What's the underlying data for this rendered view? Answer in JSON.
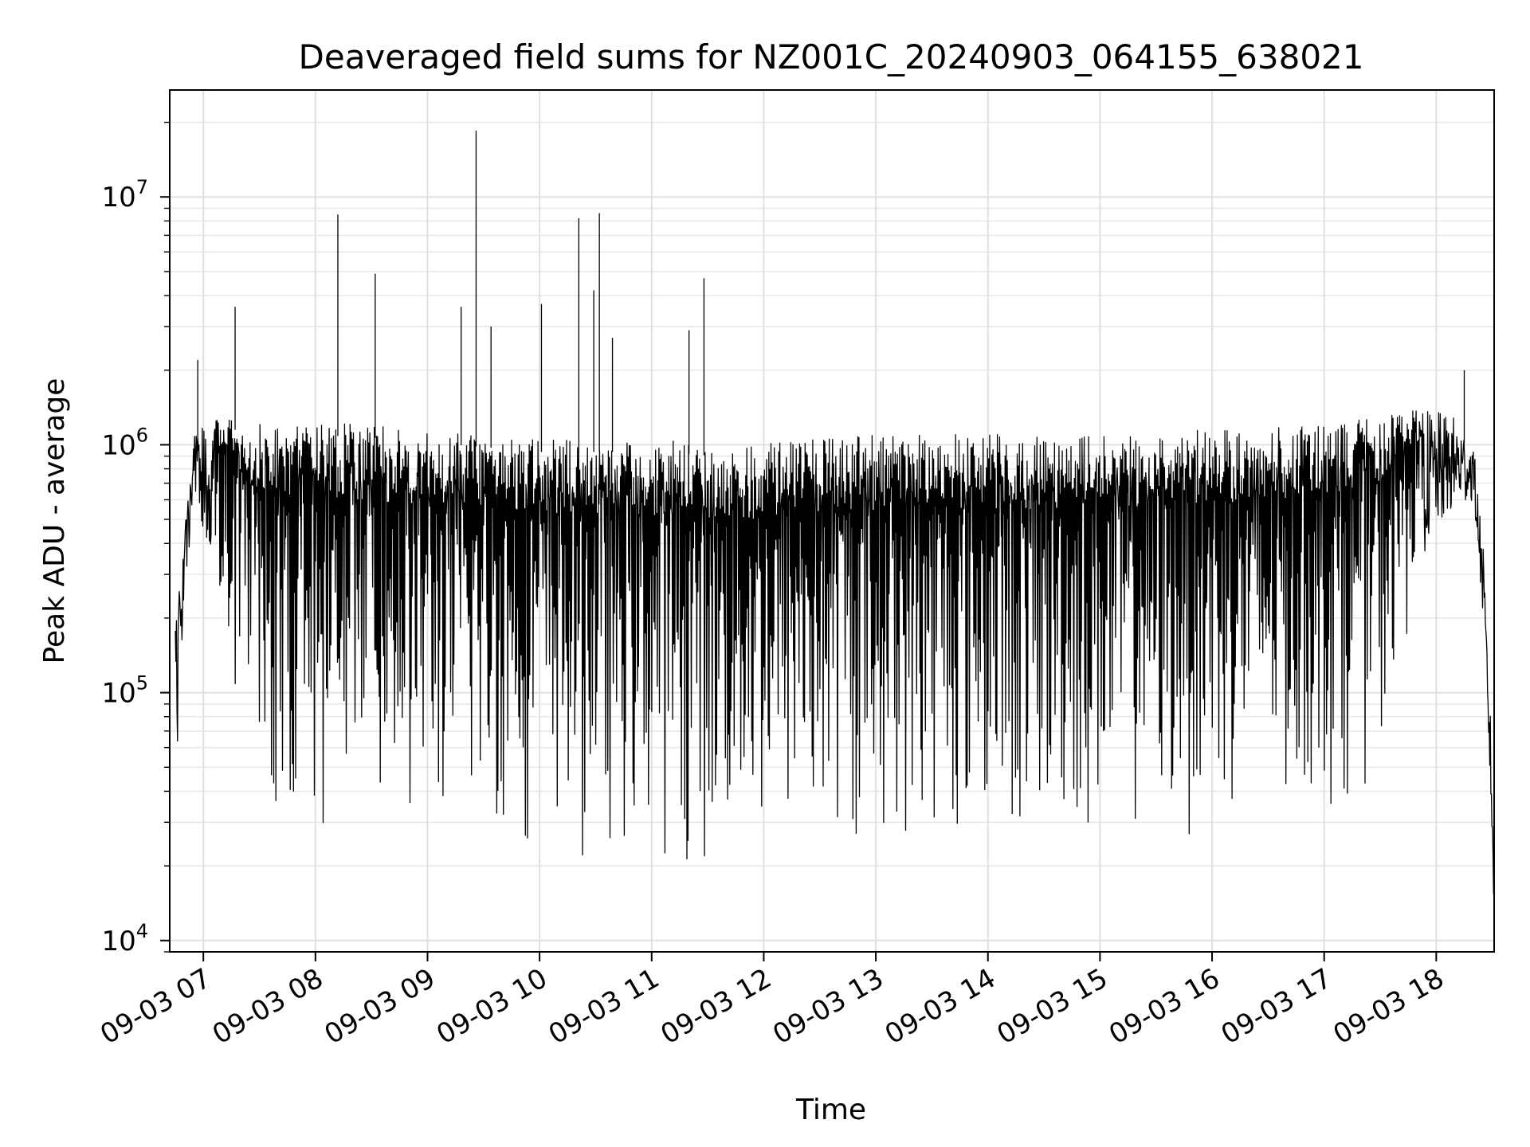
{
  "chart_data": {
    "type": "line",
    "title": "Deaveraged field sums for NZ001C_20240903_064155_638021",
    "xlabel": "Time",
    "ylabel": "Peak ADU - average",
    "yscale": "log",
    "ylim": [
      9000,
      27000000
    ],
    "xlim": [
      "2024-09-03 06:42",
      "2024-09-03 18:31"
    ],
    "grid": true,
    "line_color": "#000000",
    "x_ticks": [
      {
        "time": "2024-09-03 07:00",
        "label": "09-03 07"
      },
      {
        "time": "2024-09-03 08:00",
        "label": "09-03 08"
      },
      {
        "time": "2024-09-03 09:00",
        "label": "09-03 09"
      },
      {
        "time": "2024-09-03 10:00",
        "label": "09-03 10"
      },
      {
        "time": "2024-09-03 11:00",
        "label": "09-03 11"
      },
      {
        "time": "2024-09-03 12:00",
        "label": "09-03 12"
      },
      {
        "time": "2024-09-03 13:00",
        "label": "09-03 13"
      },
      {
        "time": "2024-09-03 14:00",
        "label": "09-03 14"
      },
      {
        "time": "2024-09-03 15:00",
        "label": "09-03 15"
      },
      {
        "time": "2024-09-03 16:00",
        "label": "09-03 16"
      },
      {
        "time": "2024-09-03 17:00",
        "label": "09-03 17"
      },
      {
        "time": "2024-09-03 18:00",
        "label": "09-03 18"
      }
    ],
    "y_ticks": [
      {
        "value": 10000,
        "base": "10",
        "exp": "4"
      },
      {
        "value": 100000,
        "base": "10",
        "exp": "5"
      },
      {
        "value": 1000000,
        "base": "10",
        "exp": "6"
      },
      {
        "value": 10000000,
        "base": "10",
        "exp": "7"
      }
    ],
    "envelope": [
      {
        "time": "2024-09-03 06:45",
        "low": 35000,
        "high": 180000
      },
      {
        "time": "2024-09-03 06:50",
        "low": 260000,
        "high": 450000
      },
      {
        "time": "2024-09-03 06:55",
        "low": 600000,
        "high": 1100000
      },
      {
        "time": "2024-09-03 07:05",
        "low": 350000,
        "high": 1300000
      },
      {
        "time": "2024-09-03 07:15",
        "low": 120000,
        "high": 1300000
      },
      {
        "time": "2024-09-03 07:25",
        "low": 40000,
        "high": 1250000
      },
      {
        "time": "2024-09-03 07:40",
        "low": 28000,
        "high": 1250000
      },
      {
        "time": "2024-09-03 08:30",
        "low": 24000,
        "high": 1200000
      },
      {
        "time": "2024-09-03 10:00",
        "low": 22000,
        "high": 1050000
      },
      {
        "time": "2024-09-03 11:00",
        "low": 20000,
        "high": 1050000
      },
      {
        "time": "2024-09-03 11:45",
        "low": 18000,
        "high": 1000000
      },
      {
        "time": "2024-09-03 13:00",
        "low": 22000,
        "high": 1100000
      },
      {
        "time": "2024-09-03 15:00",
        "low": 23000,
        "high": 1100000
      },
      {
        "time": "2024-09-03 16:00",
        "low": 25000,
        "high": 1150000
      },
      {
        "time": "2024-09-03 17:00",
        "low": 30000,
        "high": 1200000
      },
      {
        "time": "2024-09-03 17:30",
        "low": 45000,
        "high": 1300000
      },
      {
        "time": "2024-09-03 17:55",
        "low": 400000,
        "high": 1400000
      },
      {
        "time": "2024-09-03 18:10",
        "low": 550000,
        "high": 1300000
      },
      {
        "time": "2024-09-03 18:20",
        "low": 600000,
        "high": 1000000
      },
      {
        "time": "2024-09-03 18:25",
        "low": 200000,
        "high": 400000
      },
      {
        "time": "2024-09-03 18:29",
        "low": 40000,
        "high": 80000
      },
      {
        "time": "2024-09-03 18:31",
        "low": 12000,
        "high": 20000
      }
    ],
    "spikes": [
      {
        "time": "2024-09-03 06:57",
        "value": 2200000
      },
      {
        "time": "2024-09-03 07:17",
        "value": 3600000
      },
      {
        "time": "2024-09-03 08:12",
        "value": 8500000
      },
      {
        "time": "2024-09-03 08:32",
        "value": 4900000
      },
      {
        "time": "2024-09-03 09:18",
        "value": 3600000
      },
      {
        "time": "2024-09-03 09:26",
        "value": 18500000
      },
      {
        "time": "2024-09-03 09:34",
        "value": 3000000
      },
      {
        "time": "2024-09-03 10:01",
        "value": 3700000
      },
      {
        "time": "2024-09-03 10:21",
        "value": 8200000
      },
      {
        "time": "2024-09-03 10:29",
        "value": 4200000
      },
      {
        "time": "2024-09-03 10:32",
        "value": 8600000
      },
      {
        "time": "2024-09-03 10:39",
        "value": 2700000
      },
      {
        "time": "2024-09-03 11:28",
        "value": 4700000
      },
      {
        "time": "2024-09-03 11:20",
        "value": 2900000
      },
      {
        "time": "2024-09-03 18:15",
        "value": 2000000
      }
    ]
  }
}
